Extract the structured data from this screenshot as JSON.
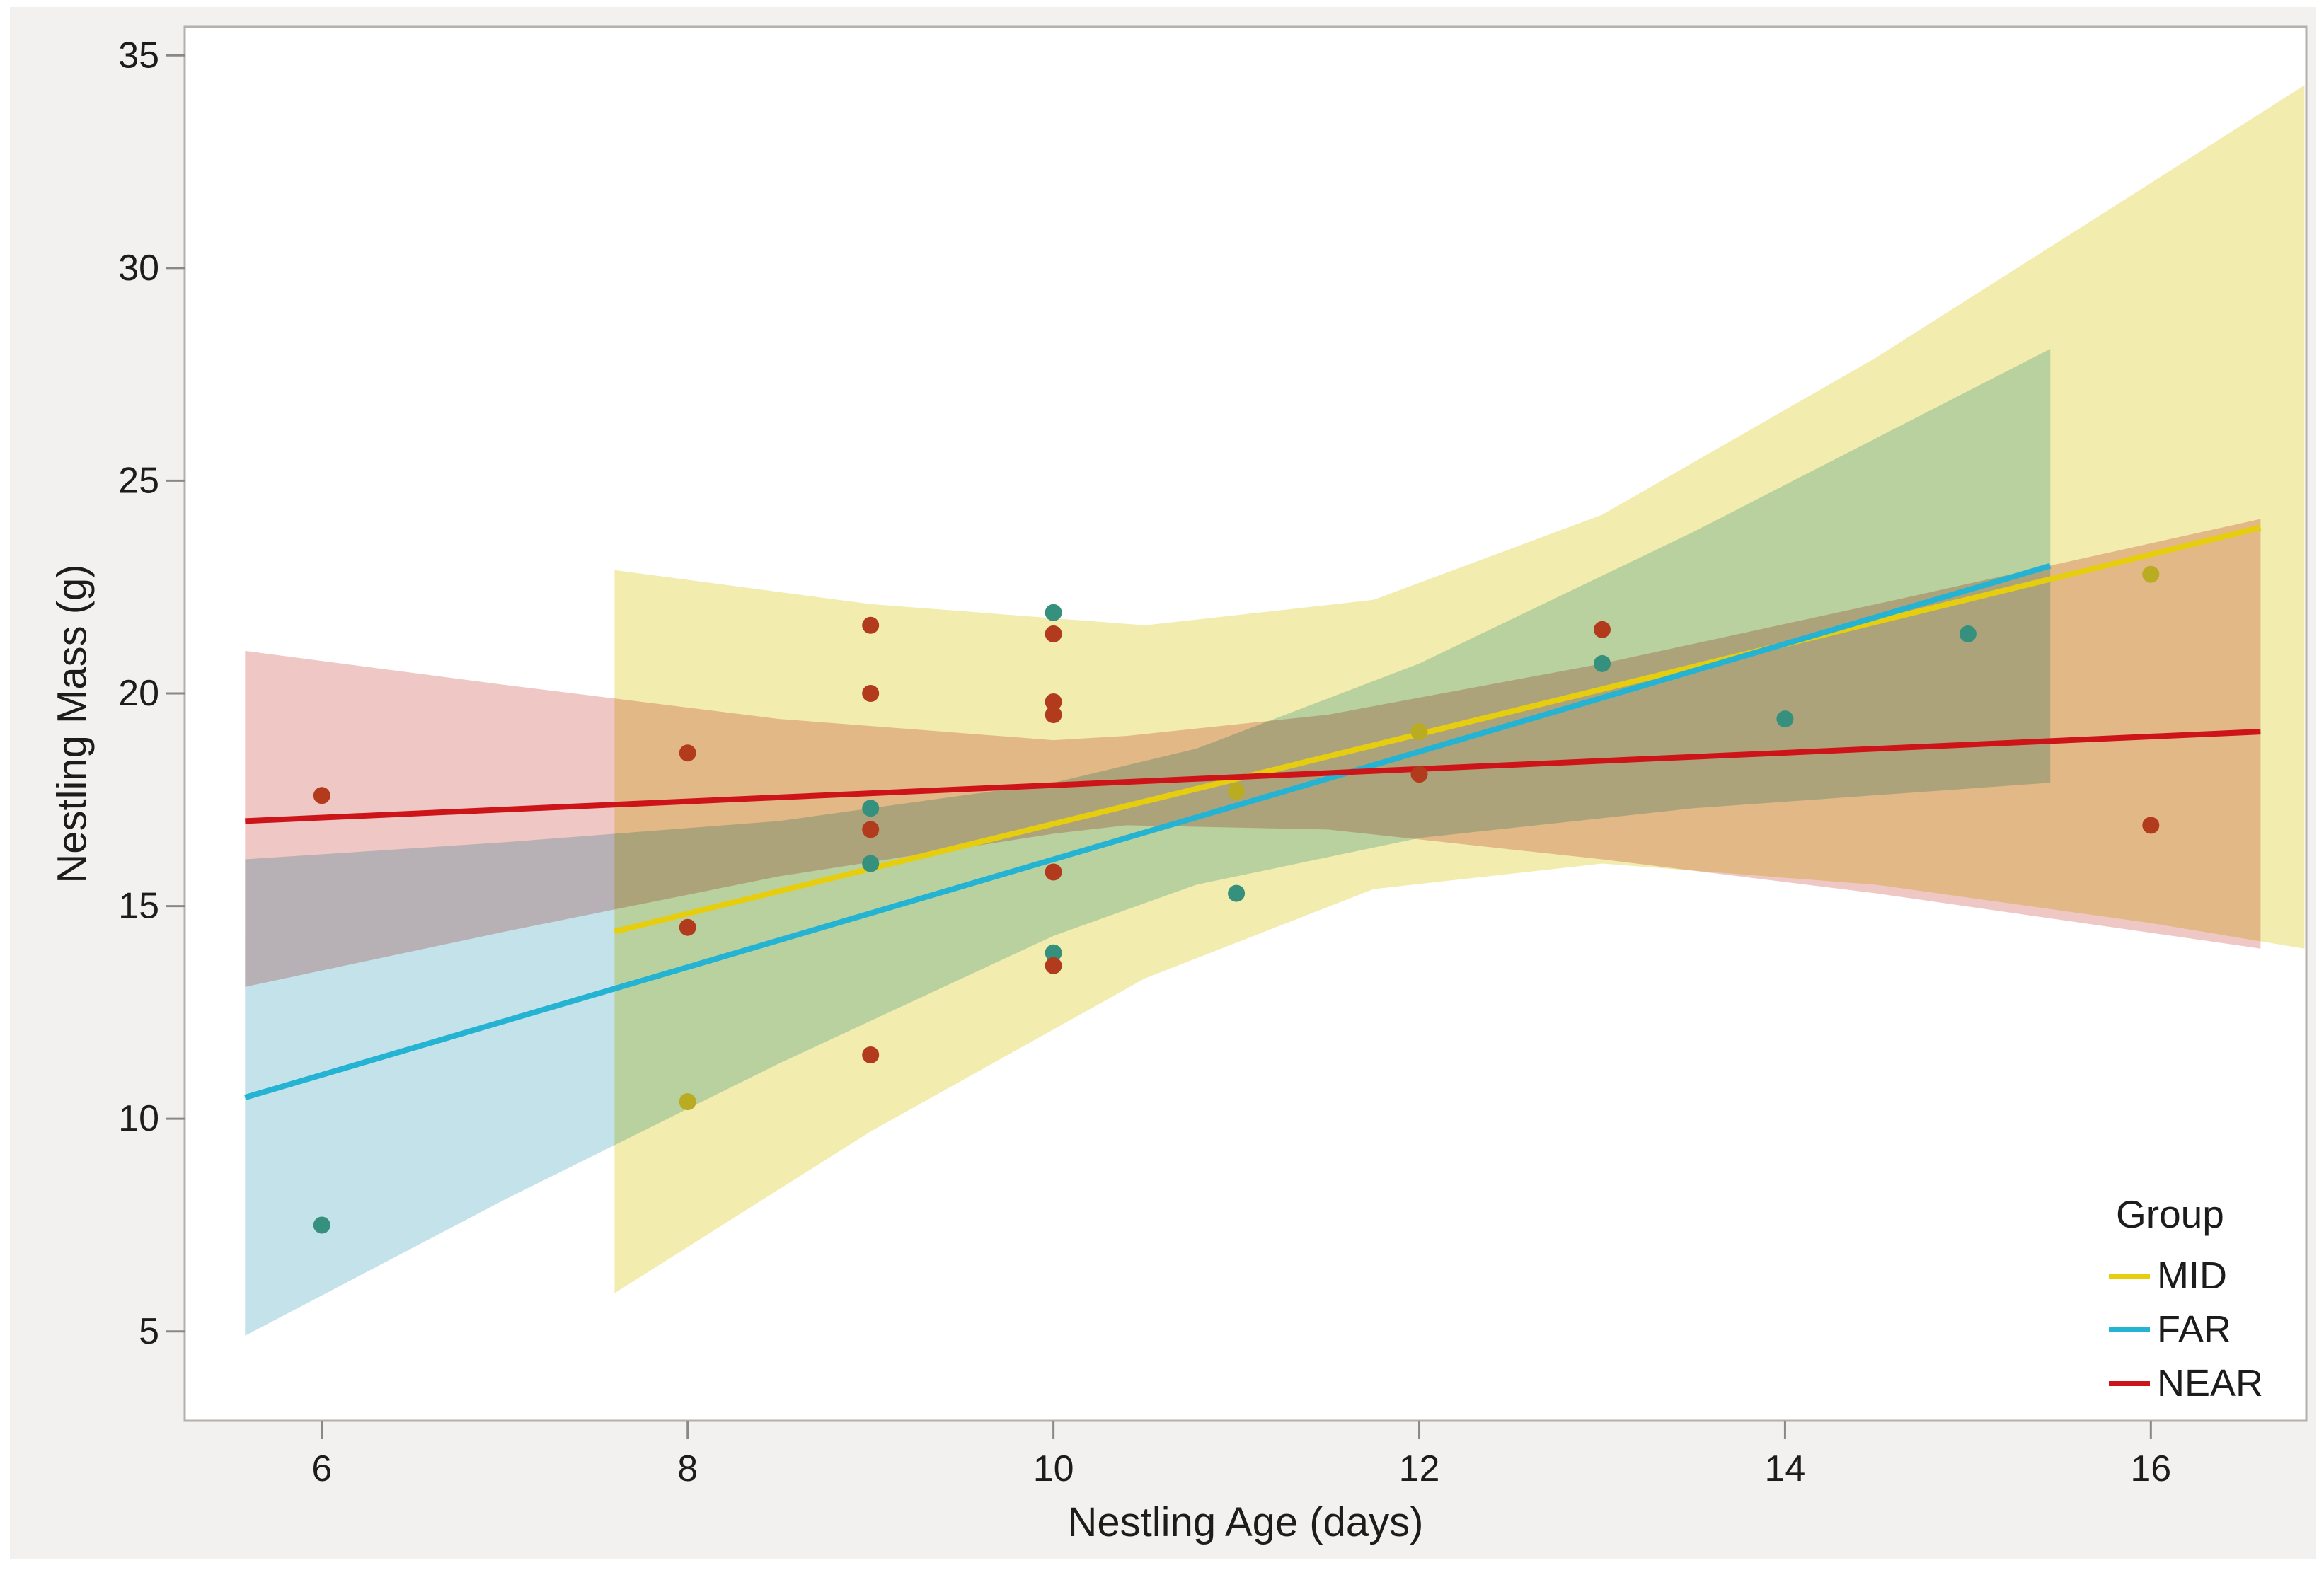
{
  "window": {
    "background": "#f2f1ef",
    "frame": "#ffffff"
  },
  "plot": {
    "background": "#ffffff",
    "border_color": "#b3b0ad",
    "tick_color": "#8a8885",
    "text_color": "#1c1c1c",
    "tick_font_size": 52
  },
  "axes": {
    "x": {
      "title": "Nestling Age (days)",
      "tick_labels": [
        "6",
        "8",
        "10",
        "12",
        "14",
        "16"
      ],
      "tick_values": [
        6,
        8,
        10,
        12,
        14,
        16
      ],
      "range": [
        5.25,
        16.85
      ]
    },
    "y": {
      "title": "Nestling Mass (g)",
      "tick_labels": [
        "5",
        "10",
        "15",
        "20",
        "25",
        "30",
        "35"
      ],
      "tick_values": [
        5,
        10,
        15,
        20,
        25,
        30,
        35
      ],
      "range": [
        2.9,
        35.67
      ]
    }
  },
  "legend": {
    "title": "Group",
    "items": [
      {
        "label": "MID",
        "color": "#e6ce0f"
      },
      {
        "label": "FAR",
        "color": "#24b3d3"
      },
      {
        "label": "NEAR",
        "color": "#cd1418"
      }
    ]
  },
  "chart_data": {
    "type": "scatter",
    "title": "",
    "xlabel": "Nestling Age (days)",
    "ylabel": "Nestling Mass (g)",
    "xlim": [
      5.25,
      16.85
    ],
    "ylim": [
      2.9,
      35.67
    ],
    "grid": false,
    "legend_position": "bottom-right",
    "series": [
      {
        "name": "MID",
        "line_color": "#e6ce0f",
        "point_color": "#b9ab22",
        "band_color": "#f2ecae",
        "points": [
          [
            8,
            10.4
          ],
          [
            11,
            17.7
          ],
          [
            12,
            19.1
          ],
          [
            16,
            22.8
          ]
        ],
        "fit_line": {
          "x": [
            7.6,
            16.6
          ],
          "y": [
            14.4,
            23.9
          ]
        },
        "band": {
          "x": [
            7.6,
            9.0,
            10.5,
            11.75,
            13.0,
            14.5,
            16.0,
            16.84
          ],
          "top": [
            22.9,
            22.1,
            21.6,
            22.2,
            24.2,
            27.9,
            32.0,
            34.3
          ],
          "bottom": [
            5.9,
            9.7,
            13.3,
            15.4,
            16.0,
            15.5,
            14.6,
            14.0
          ]
        }
      },
      {
        "name": "FAR",
        "line_color": "#24b3d3",
        "point_color": "#36907e",
        "band_color": "#c3e2e9",
        "points": [
          [
            6,
            7.5
          ],
          [
            9,
            17.3
          ],
          [
            9,
            16.0
          ],
          [
            10,
            21.9
          ],
          [
            10,
            13.9
          ],
          [
            11,
            15.3
          ],
          [
            13,
            20.7
          ],
          [
            14,
            19.4
          ],
          [
            15,
            21.4
          ]
        ],
        "fit_line": {
          "x": [
            5.58,
            15.45
          ],
          "y": [
            10.5,
            23.0
          ]
        },
        "band": {
          "x": [
            5.58,
            7.0,
            8.5,
            10.0,
            10.78,
            12.0,
            13.5,
            15.45
          ],
          "top": [
            16.1,
            16.5,
            17.0,
            17.9,
            18.7,
            20.7,
            23.8,
            28.1
          ],
          "bottom": [
            4.9,
            8.1,
            11.3,
            14.3,
            15.5,
            16.6,
            17.3,
            17.9
          ]
        }
      },
      {
        "name": "NEAR",
        "line_color": "#cd1418",
        "point_color": "#b23b1d",
        "band_color": "#efc7c5",
        "points": [
          [
            6,
            17.6
          ],
          [
            8,
            18.6
          ],
          [
            8,
            14.5
          ],
          [
            9,
            21.6
          ],
          [
            9,
            20.0
          ],
          [
            9,
            16.8
          ],
          [
            9,
            11.5
          ],
          [
            10,
            21.4
          ],
          [
            10,
            19.8
          ],
          [
            10,
            19.5
          ],
          [
            10,
            15.8
          ],
          [
            10,
            13.6
          ],
          [
            12,
            18.1
          ],
          [
            13,
            21.5
          ],
          [
            16,
            16.9
          ]
        ],
        "fit_line": {
          "x": [
            5.58,
            16.6
          ],
          "y": [
            17.0,
            19.1
          ]
        },
        "band": {
          "x": [
            5.58,
            7.0,
            8.5,
            10.0,
            10.4,
            11.5,
            13.0,
            14.5,
            16.6
          ],
          "top": [
            21.0,
            20.2,
            19.4,
            18.9,
            19.0,
            19.5,
            20.7,
            22.1,
            24.1
          ],
          "bottom": [
            13.1,
            14.4,
            15.7,
            16.7,
            16.9,
            16.8,
            16.1,
            15.3,
            14.0
          ]
        }
      }
    ]
  }
}
